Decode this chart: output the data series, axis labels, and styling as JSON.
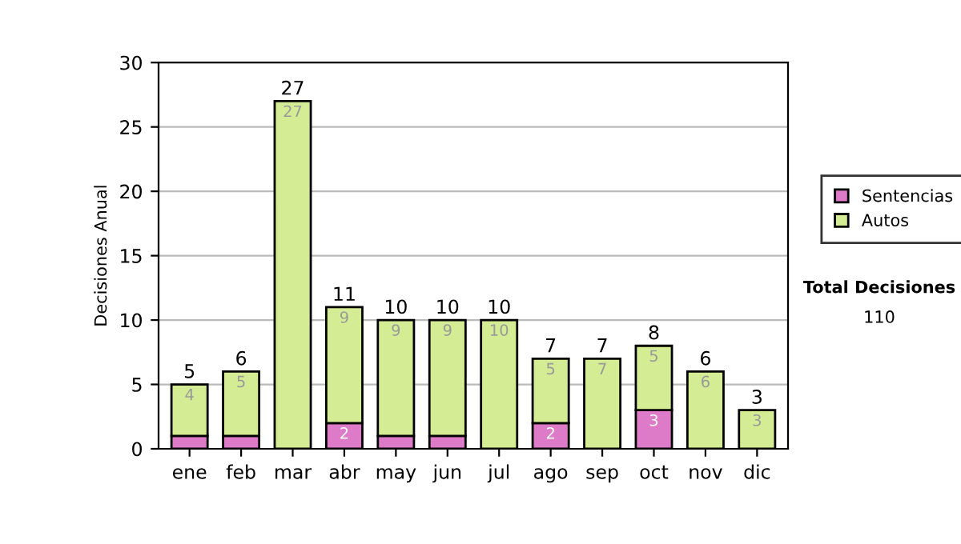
{
  "chart_data": {
    "type": "bar",
    "stacked": true,
    "ylabel": "Decisiones Anual",
    "categories": [
      "ene",
      "feb",
      "mar",
      "abr",
      "may",
      "jun",
      "jul",
      "ago",
      "sep",
      "oct",
      "nov",
      "dic"
    ],
    "series": [
      {
        "name": "Sentencias",
        "color": "#dd7bc8",
        "values": [
          1,
          1,
          0,
          2,
          1,
          1,
          0,
          2,
          0,
          3,
          0,
          0
        ],
        "value_labels": [
          null,
          null,
          null,
          "2",
          null,
          null,
          null,
          "2",
          null,
          "3",
          null,
          null
        ]
      },
      {
        "name": "Autos",
        "color": "#d4ec94",
        "values": [
          4,
          5,
          27,
          9,
          9,
          9,
          10,
          5,
          7,
          5,
          6,
          3
        ],
        "value_labels": [
          "4",
          "5",
          "27",
          "9",
          "9",
          "9",
          "10",
          "5",
          "7",
          "5",
          "6",
          "3"
        ]
      }
    ],
    "totals": [
      "5",
      "6",
      "27",
      "11",
      "10",
      "10",
      "10",
      "7",
      "7",
      "8",
      "6",
      "3"
    ],
    "ylim": [
      0,
      30
    ],
    "yticks": [
      0,
      5,
      10,
      15,
      20,
      25,
      30
    ],
    "grid": "y",
    "legend": "right",
    "annotations": [
      "Total Decisiones",
      "110"
    ]
  }
}
